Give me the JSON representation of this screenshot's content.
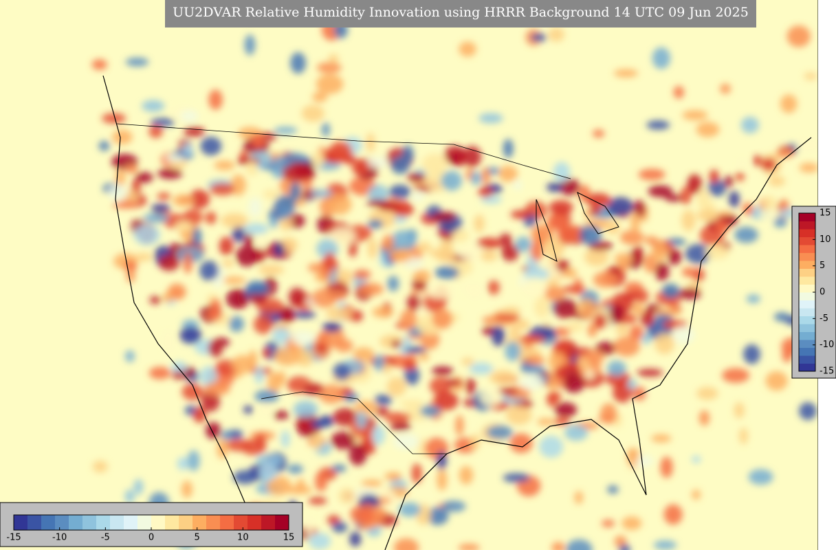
{
  "title": "UU2DVAR Relative Humidity Innovation using HRRR Background 14 UTC 09 Jun 2025",
  "colorbar": {
    "lim": [
      -15,
      15
    ],
    "ticks": [
      -15,
      -10,
      -5,
      0,
      5,
      10,
      15
    ],
    "colors": [
      "#313695",
      "#3a54a4",
      "#4575b4",
      "#5b8dc0",
      "#74add1",
      "#8fc3dd",
      "#abd9e9",
      "#c9e7f1",
      "#e0f3f8",
      "#f2fae0",
      "#fff9c4",
      "#fee8a0",
      "#fdd084",
      "#fdae61",
      "#f98e52",
      "#f46d43",
      "#e34a33",
      "#d73027",
      "#bd1726",
      "#a50026"
    ]
  }
}
